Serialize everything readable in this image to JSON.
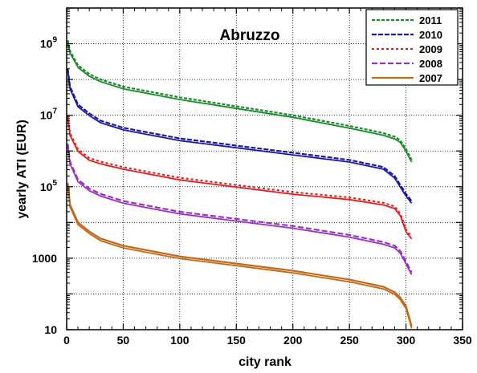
{
  "chart_data": {
    "type": "line",
    "title": "Abruzzo",
    "xlabel": "city  rank",
    "ylabel": "yearly  ATI (EUR)",
    "xlim": [
      0,
      350
    ],
    "ylim_log10": [
      1,
      10
    ],
    "y_scale": "log",
    "grid": true,
    "legend_position": "top-right",
    "x_ticks": [
      0,
      50,
      100,
      150,
      200,
      250,
      300,
      350
    ],
    "x_tick_labels": [
      "0",
      "50",
      "100",
      "150",
      "200",
      "250",
      "300",
      "350"
    ],
    "y_ticks_log10": [
      1,
      3,
      5,
      7,
      9
    ],
    "y_tick_labels": [
      {
        "base": "10",
        "exp": ""
      },
      {
        "base": "1000",
        "exp": ""
      },
      {
        "base": "10",
        "exp": "5"
      },
      {
        "base": "10",
        "exp": "7"
      },
      {
        "base": "10",
        "exp": "9"
      }
    ],
    "series": [
      {
        "name": "2011",
        "color": "#1a8a2a",
        "dash": "4,2",
        "x": [
          1,
          3,
          10,
          20,
          30,
          50,
          75,
          100,
          150,
          200,
          250,
          280,
          290,
          295,
          300,
          305
        ],
        "y_log10": [
          9.1,
          8.8,
          8.4,
          8.15,
          8.0,
          7.8,
          7.65,
          7.5,
          7.25,
          7.0,
          6.7,
          6.5,
          6.4,
          6.3,
          6.05,
          5.75
        ]
      },
      {
        "name": "2010",
        "color": "#1a1aa0",
        "dash": "6,2",
        "x": [
          1,
          3,
          10,
          20,
          30,
          50,
          75,
          100,
          150,
          200,
          250,
          280,
          290,
          295,
          300,
          305
        ],
        "y_log10": [
          8.3,
          7.8,
          7.3,
          7.05,
          6.85,
          6.65,
          6.5,
          6.35,
          6.15,
          5.95,
          5.75,
          5.55,
          5.3,
          5.05,
          4.8,
          4.6
        ]
      },
      {
        "name": "2009",
        "color": "#e02020",
        "dash": "3,3",
        "x": [
          1,
          3,
          10,
          20,
          30,
          50,
          75,
          100,
          150,
          200,
          250,
          280,
          290,
          295,
          300,
          305
        ],
        "y_log10": [
          7.0,
          6.5,
          6.05,
          5.8,
          5.7,
          5.55,
          5.4,
          5.25,
          5.05,
          4.85,
          4.7,
          4.55,
          4.45,
          4.25,
          3.8,
          3.6
        ]
      },
      {
        "name": "2008",
        "color": "#9a30c0",
        "dash": "7,3",
        "x": [
          1,
          3,
          10,
          20,
          30,
          50,
          75,
          100,
          150,
          200,
          250,
          280,
          290,
          295,
          300,
          305
        ],
        "y_log10": [
          6.2,
          5.7,
          5.2,
          4.95,
          4.8,
          4.6,
          4.45,
          4.3,
          4.1,
          3.9,
          3.65,
          3.45,
          3.35,
          3.2,
          2.9,
          2.6
        ]
      },
      {
        "name": "2007",
        "color": "#c06a1a",
        "dash": "",
        "x": [
          1,
          3,
          10,
          20,
          30,
          50,
          75,
          100,
          150,
          200,
          250,
          280,
          290,
          295,
          300,
          305
        ],
        "y_log10": [
          5.1,
          4.5,
          4.0,
          3.75,
          3.55,
          3.35,
          3.2,
          3.05,
          2.85,
          2.65,
          2.4,
          2.2,
          2.05,
          1.9,
          1.65,
          1.1
        ]
      }
    ]
  }
}
